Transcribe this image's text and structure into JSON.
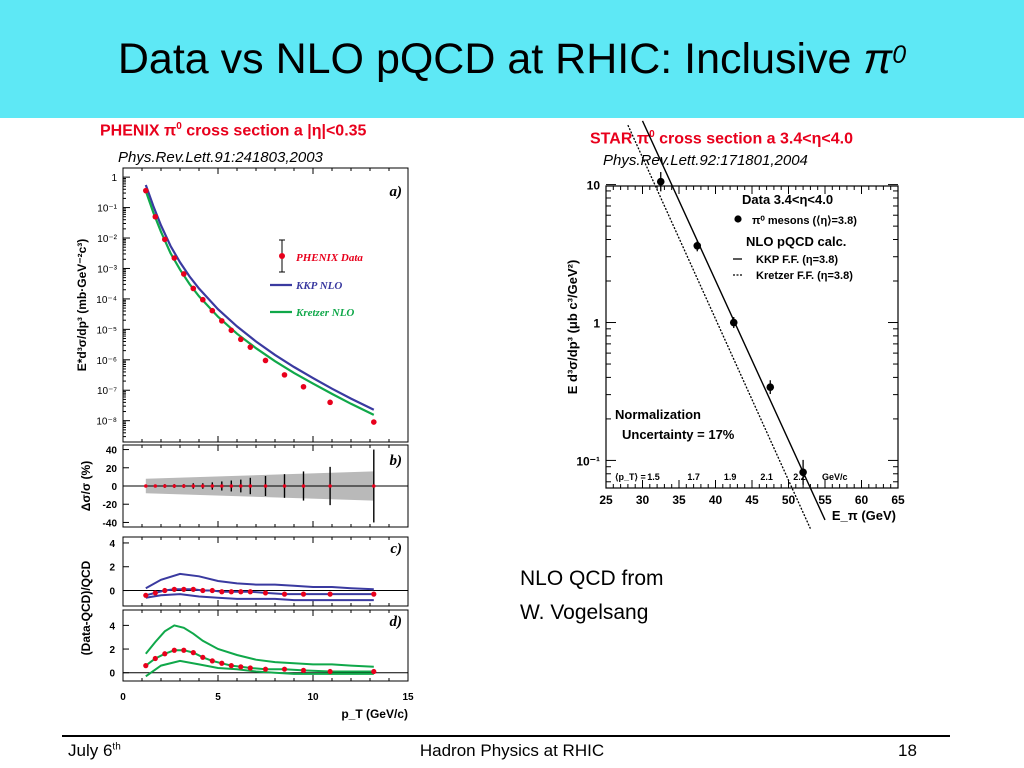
{
  "slide": {
    "title_text": "Data vs NLO pQCD at RHIC: Inclusive ",
    "title_symbol": "π",
    "title_sup": "0",
    "note_line1": "NLO QCD from",
    "note_line2": "W. Vogelsang",
    "footer_left": "July 6",
    "footer_left_sup": "th",
    "footer_center": "Hadron Physics at RHIC",
    "footer_right": "18"
  },
  "phenix": {
    "caption_a": "PHENIX π",
    "caption_sup": "0",
    "caption_b": " cross section a |η|<0.35",
    "reference": "Phys.Rev.Lett.91:241803,2003"
  },
  "star": {
    "caption_a": "STAR π",
    "caption_sup": "0",
    "caption_b": " cross section a 3.4<η<4.0",
    "reference": "Phys.Rev.Lett.92:171801,2004"
  },
  "colors": {
    "header": "#5ee8f5",
    "caption": "#e8001c",
    "data": "#e8001c",
    "kkp": "#3a3aa0",
    "kretzer": "#10a84a",
    "band": "#b9b9b9"
  },
  "chart_data": [
    {
      "panel": "a)",
      "type": "scatter",
      "ylabel": "E*d³σ/dp³ (mb·GeV⁻²c³)",
      "xlim": [
        0,
        15
      ],
      "ylim_log10": [
        -8.7,
        0.3
      ],
      "yscale": "log",
      "ytick_labels": [
        "1",
        "10⁻¹",
        "10⁻²",
        "10⁻³",
        "10⁻⁴",
        "10⁻⁵",
        "10⁻⁶",
        "10⁻⁷",
        "10⁻⁸"
      ],
      "legend": [
        "PHENIX Data",
        "KKP NLO",
        "Kretzer NLO"
      ],
      "legend_position": "right",
      "x": [
        1.2,
        1.7,
        2.2,
        2.7,
        3.2,
        3.7,
        4.2,
        4.7,
        5.2,
        5.7,
        6.2,
        6.7,
        7.5,
        8.5,
        9.5,
        10.9,
        13.2
      ],
      "y": [
        0.36,
        0.05,
        0.009,
        0.0022,
        0.00066,
        0.00022,
        9.4e-05,
        4.1e-05,
        1.9e-05,
        9.3e-06,
        4.7e-06,
        2.6e-06,
        9.5e-07,
        3.2e-07,
        1.3e-07,
        4e-08,
        9e-09
      ],
      "series": [
        {
          "name": "KKP NLO",
          "x": [
            1.2,
            1.6,
            2,
            2.5,
            3,
            3.5,
            4,
            5,
            6,
            7,
            8,
            9,
            10,
            11,
            12,
            13.2
          ],
          "y": [
            0.55,
            0.11,
            0.026,
            0.0055,
            0.0016,
            0.00055,
            0.00022,
            4.6e-05,
            1.25e-05,
            4e-06,
            1.45e-06,
            5.8e-07,
            2.5e-07,
            1.12e-07,
            5.3e-08,
            2.3e-08
          ]
        },
        {
          "name": "Kretzer NLO",
          "x": [
            1.2,
            1.6,
            2,
            2.5,
            3,
            3.5,
            4,
            5,
            6,
            7,
            8,
            9,
            10,
            11,
            12,
            13.2
          ],
          "y": [
            0.35,
            0.068,
            0.016,
            0.0032,
            0.00092,
            0.00031,
            0.000122,
            2.6e-05,
            7.2e-06,
            2.4e-06,
            9e-07,
            3.7e-07,
            1.65e-07,
            7.6e-08,
            3.6e-08,
            1.55e-08
          ]
        }
      ]
    },
    {
      "panel": "b)",
      "type": "scatter",
      "ylabel": "Δσ/σ (%)",
      "ylim": [
        -45,
        45
      ],
      "yticks": [
        40,
        20,
        0,
        -20,
        -40
      ],
      "x": [
        1.2,
        1.7,
        2.2,
        2.7,
        3.2,
        3.7,
        4.2,
        4.7,
        5.2,
        5.7,
        6.2,
        6.7,
        7.5,
        8.5,
        9.5,
        10.9,
        13.2
      ],
      "y": [
        0,
        0,
        0,
        0,
        0,
        0,
        0,
        0,
        0,
        0,
        0,
        0,
        0,
        0,
        0,
        0,
        0
      ],
      "errors": [
        1,
        1,
        2,
        2,
        2,
        3,
        3,
        4,
        5,
        6,
        7,
        9,
        11,
        13,
        16,
        21,
        40
      ],
      "band": {
        "x": [
          1.2,
          13.2
        ],
        "half_width_percent": [
          8,
          16
        ]
      }
    },
    {
      "panel": "c)",
      "type": "line",
      "ylabel": "(Data-QCD)/QCD",
      "ylim": [
        -1.3,
        4.5
      ],
      "yticks": [
        4,
        2,
        0
      ],
      "x": [
        1.2,
        1.7,
        2.2,
        2.7,
        3.2,
        3.7,
        4.2,
        4.7,
        5.2,
        5.7,
        6.2,
        6.7,
        7.5,
        8.5,
        9.5,
        10.9,
        13.2
      ],
      "y": [
        -0.4,
        -0.2,
        0.0,
        0.1,
        0.1,
        0.1,
        0.0,
        0.0,
        -0.1,
        -0.1,
        -0.1,
        -0.1,
        -0.2,
        -0.3,
        -0.3,
        -0.3,
        -0.3
      ],
      "series": [
        {
          "name": "upper",
          "x": [
            1.2,
            2,
            3,
            4,
            5,
            6,
            7,
            8,
            9,
            10,
            11,
            12,
            13.2
          ],
          "y": [
            0.2,
            0.9,
            1.4,
            1.2,
            0.8,
            0.6,
            0.5,
            0.5,
            0.4,
            0.3,
            0.3,
            0.2,
            0.1
          ]
        },
        {
          "name": "lower",
          "x": [
            1.2,
            2,
            3,
            4,
            5,
            6,
            7,
            8,
            9,
            10,
            11,
            12,
            13.2
          ],
          "y": [
            -0.6,
            -0.4,
            -0.3,
            -0.5,
            -0.6,
            -0.7,
            -0.7,
            -0.7,
            -0.8,
            -0.8,
            -0.8,
            -0.8,
            -0.8
          ]
        }
      ]
    },
    {
      "panel": "d)",
      "type": "line",
      "xlabel": "p_T (GeV/c)",
      "xlim": [
        0,
        15
      ],
      "xticks": [
        0,
        5,
        10,
        15
      ],
      "ylim": [
        -0.7,
        5.3
      ],
      "yticks": [
        4,
        2,
        0
      ],
      "x": [
        1.2,
        1.7,
        2.2,
        2.7,
        3.2,
        3.7,
        4.2,
        4.7,
        5.2,
        5.7,
        6.2,
        6.7,
        7.5,
        8.5,
        9.5,
        10.9,
        13.2
      ],
      "y": [
        0.6,
        1.2,
        1.6,
        1.9,
        1.9,
        1.7,
        1.3,
        1.0,
        0.8,
        0.6,
        0.5,
        0.4,
        0.3,
        0.3,
        0.2,
        0.1,
        0.1
      ],
      "series": [
        {
          "name": "upper",
          "x": [
            1.2,
            1.7,
            2.2,
            2.7,
            3.2,
            3.7,
            4.2,
            5,
            6,
            7,
            8,
            9,
            10,
            11,
            12,
            13.2
          ],
          "y": [
            1.6,
            2.6,
            3.5,
            4.0,
            3.8,
            3.3,
            2.7,
            2.0,
            1.5,
            1.1,
            0.9,
            0.8,
            0.7,
            0.7,
            0.6,
            0.5
          ]
        },
        {
          "name": "lower",
          "x": [
            1.2,
            2,
            3,
            4,
            5,
            6,
            7,
            8,
            9,
            10,
            11,
            12,
            13.2
          ],
          "y": [
            -0.3,
            0.6,
            1.0,
            0.7,
            0.4,
            0.3,
            0.1,
            0.0,
            -0.1,
            -0.1,
            -0.1,
            -0.1,
            -0.1
          ]
        }
      ]
    },
    {
      "panel": "STAR",
      "type": "scatter",
      "xlabel": "E_π (GeV)",
      "ylabel": "E d³σ/dp³ (μb c³/GeV²)",
      "xlim": [
        25,
        65
      ],
      "xticks": [
        25,
        30,
        35,
        40,
        45,
        50,
        55,
        60,
        65
      ],
      "ylim_log10": [
        -1.2,
        0.99
      ],
      "yscale": "log",
      "ytick_labels": [
        "10",
        "1",
        "10⁻¹"
      ],
      "legend_title": "Data 3.4<η<4.0",
      "legend": [
        "π⁰ mesons (⟨η⟩=3.8)",
        "NLO pQCD calc.",
        "KKP F.F. (η=3.8)",
        "Kretzer F.F. (η=3.8)"
      ],
      "legend_position": "top-right",
      "annotation": [
        "Normalization",
        "Uncertainty = 17%"
      ],
      "pt_label": "⟨p_T⟩ =",
      "pt_unit": "GeV/c",
      "pt_values": [
        "1.5",
        "1.7",
        "1.9",
        "2.1",
        "2.2"
      ],
      "pt_positions": [
        31.5,
        37,
        42,
        47,
        51.5
      ],
      "x": [
        32.5,
        37.5,
        42.5,
        47.5,
        52
      ],
      "y": [
        10.5,
        3.6,
        1.0,
        0.34,
        0.082
      ],
      "error_log10": [
        0.07,
        0.04,
        0.04,
        0.05,
        0.09
      ],
      "series": [
        {
          "name": "KKP F.F. (η=3.8)",
          "x": [
            30,
            55
          ],
          "y": [
            29,
            0.037
          ]
        },
        {
          "name": "Kretzer F.F. (η=3.8)",
          "x": [
            28,
            53
          ],
          "y": [
            27,
            0.032
          ]
        }
      ]
    }
  ]
}
